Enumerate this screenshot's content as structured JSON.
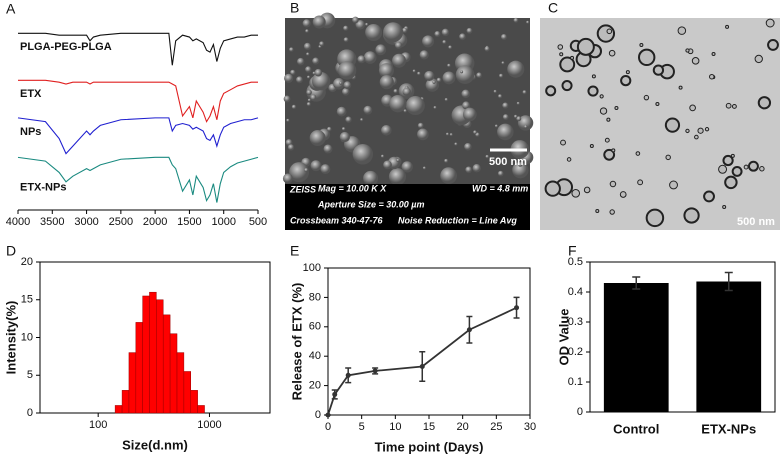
{
  "chart_data": [
    {
      "type": "line",
      "panel_label": "A",
      "x": [
        4000,
        3600,
        3400,
        3300,
        3200,
        3000,
        2950,
        2900,
        2800,
        2500,
        2000,
        1800,
        1750,
        1700,
        1600,
        1500,
        1450,
        1400,
        1300,
        1250,
        1200,
        1150,
        1100,
        1050,
        1000,
        900,
        800,
        700,
        600,
        500
      ],
      "series": [
        {
          "name": "PLGA-PEG-PLGA",
          "color": "#111111",
          "values": [
            94,
            94,
            93,
            93,
            93,
            93,
            90,
            92,
            93,
            94,
            94,
            94,
            77,
            90,
            93,
            92,
            90,
            91,
            89,
            85,
            84,
            88,
            79,
            86,
            90,
            91,
            92,
            92,
            93,
            93
          ]
        },
        {
          "name": "ETX",
          "color": "#e02020",
          "values": [
            69,
            69,
            68,
            67,
            68,
            68,
            67,
            68,
            68,
            68,
            68,
            68,
            67,
            66,
            50,
            55,
            49,
            58,
            52,
            47,
            50,
            55,
            48,
            58,
            62,
            64,
            66,
            67,
            68,
            68
          ]
        },
        {
          "name": "NPs",
          "color": "#2020d0",
          "values": [
            49,
            47,
            38,
            30,
            34,
            42,
            40,
            42,
            45,
            48,
            49,
            49,
            42,
            45,
            46,
            45,
            43,
            44,
            42,
            38,
            37,
            40,
            34,
            40,
            44,
            46,
            47,
            48,
            48,
            49
          ]
        },
        {
          "name": "ETX-NPs",
          "color": "#1a8a80",
          "values": [
            28,
            26,
            20,
            15,
            18,
            22,
            21,
            22,
            24,
            27,
            28,
            28,
            24,
            22,
            10,
            16,
            8,
            18,
            12,
            5,
            8,
            14,
            4,
            14,
            20,
            23,
            25,
            26,
            27,
            28
          ]
        }
      ],
      "xlim": [
        4000,
        500
      ],
      "xticks": [
        4000,
        3500,
        3000,
        2500,
        2000,
        1500,
        1000,
        500
      ],
      "ylim": [
        0,
        100
      ]
    },
    {
      "type": "histogram",
      "panel_label": "D",
      "xlabel": "Size(d.nm)",
      "ylabel": "Intensity(%)",
      "bins": [
        142,
        164,
        189,
        218,
        251,
        289,
        333,
        384,
        443,
        511,
        589,
        679,
        783,
        903
      ],
      "values": [
        1,
        3,
        8,
        12,
        15.5,
        16,
        15,
        13,
        10.5,
        8,
        5.5,
        3,
        1
      ],
      "color": "#ff0000",
      "xscale": "log",
      "xlim": [
        30,
        3500
      ],
      "xticks": [
        100,
        1000
      ],
      "ylim": [
        0,
        20
      ],
      "yticks": [
        0,
        5,
        10,
        15,
        20
      ]
    },
    {
      "type": "line",
      "panel_label": "E",
      "xlabel": "Time point (Days)",
      "ylabel": "Release of ETX (%)",
      "x": [
        0,
        1,
        3,
        7,
        14,
        21,
        28
      ],
      "series": [
        {
          "color": "#333333",
          "values": [
            0,
            14,
            27,
            30,
            33,
            58,
            73
          ],
          "errors": [
            0,
            3,
            5,
            2,
            10,
            9,
            7
          ]
        }
      ],
      "markers": true,
      "xlim": [
        0,
        30
      ],
      "xticks": [
        0,
        5,
        10,
        15,
        20,
        25,
        30
      ],
      "ylim": [
        0,
        100
      ],
      "yticks": [
        0,
        20,
        40,
        60,
        80,
        100
      ]
    },
    {
      "type": "bar",
      "panel_label": "F",
      "ylabel": "OD Value",
      "categories": [
        "Control",
        "ETX-NPs"
      ],
      "values": [
        0.43,
        0.435
      ],
      "errors": [
        0.02,
        0.03
      ],
      "color": "#000000",
      "ylim": [
        0,
        0.5
      ],
      "yticks": [
        0,
        0.1,
        0.2,
        0.3,
        0.4,
        0.5
      ]
    }
  ],
  "images": [
    {
      "panel_label": "B",
      "scale_bar": "500 nm",
      "info": {
        "logo": "ZEISS",
        "mag": "Mag =  10.00 K X",
        "wd": "WD =  4.8 mm",
        "aperture": "Aperture Size = 30.00 µm",
        "instrument": "Crossbeam 340-47-76",
        "noise": "Noise Reduction = Line Avg"
      }
    },
    {
      "panel_label": "C",
      "scale_bar": "500 nm"
    }
  ]
}
